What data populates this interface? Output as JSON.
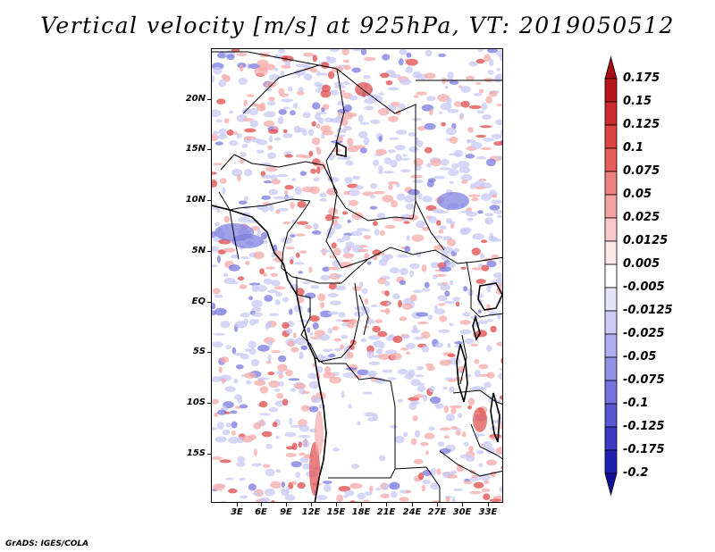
{
  "title": "Vertical velocity [m/s] at 925hPa, VT: 2019050512",
  "variable": "Vertical velocity",
  "units": "m/s",
  "level": "925hPa",
  "valid_time": "2019050512",
  "latitude_labels": [
    "20N",
    "15N",
    "10N",
    "5N",
    "EQ",
    "5S",
    "10S",
    "15S"
  ],
  "longitude_labels": [
    "3E",
    "6E",
    "9E",
    "12E",
    "15E",
    "18E",
    "21E",
    "24E",
    "27E",
    "30E",
    "33E"
  ],
  "colorbar": {
    "labels": [
      "0.175",
      "0.15",
      "0.125",
      "0.1",
      "0.075",
      "0.05",
      "0.025",
      "0.0125",
      "0.005",
      "-0.005",
      "-0.0125",
      "-0.025",
      "-0.05",
      "-0.075",
      "-0.1",
      "-0.125",
      "-0.175",
      "-0.2"
    ],
    "colors": [
      "#a50f15",
      "#b7141c",
      "#cb2a2e",
      "#dd4545",
      "#e65c5c",
      "#ee7f7f",
      "#f4a3a3",
      "#f9c9c9",
      "#fce6e6",
      "#ffffff",
      "#e4e4fb",
      "#cbcbf6",
      "#aeaef0",
      "#9191e8",
      "#7474de",
      "#5757d2",
      "#3a3ac2",
      "#2020b0",
      "#10109a"
    ]
  },
  "footer": "GrADS: IGES/COLA",
  "field_colors": {
    "strong_up": "#e04a4a",
    "weak_up": "#f5aaaa",
    "weak_down": "#c8c8f4",
    "strong_down": "#7a7ae0",
    "border": "#000000",
    "background": "#ffffff"
  }
}
